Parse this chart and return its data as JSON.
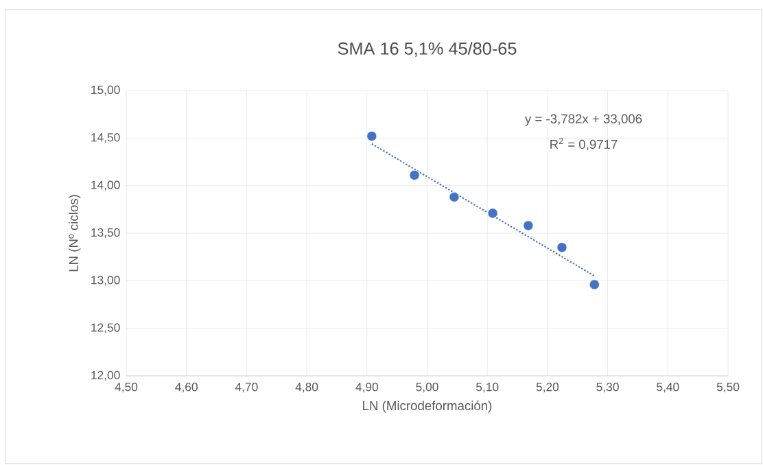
{
  "chart_data": {
    "type": "scatter",
    "title": "SMA 16 5,1% 45/80-65",
    "xlabel": "LN (Microdeformación)",
    "ylabel": "LN (Nº ciclos)",
    "annotations": [
      "y = -3,782x + 33,006",
      "R$^{2}$ = 0,9717"
    ],
    "series": [
      {
        "color": "#4472c4",
        "marker": "circle",
        "x": [
          4.908,
          4.979,
          5.045,
          5.109,
          5.168,
          5.224,
          5.278
        ],
        "values": [
          14.52,
          14.11,
          13.88,
          13.71,
          13.58,
          13.35,
          12.96
        ]
      },
      {
        "type": "line",
        "color": "#4472c4",
        "line_style": "dotted",
        "marker": "none",
        "x": [
          4.908,
          5.278
        ],
        "values": [
          14.44,
          13.05
        ]
      }
    ],
    "xlim": [
      4.5,
      5.5
    ],
    "xticks": [
      {
        "value": 4.5,
        "label": "4,50"
      },
      {
        "value": 4.6,
        "label": "4,60"
      },
      {
        "value": 4.7,
        "label": "4,70"
      },
      {
        "value": 4.8,
        "label": "4,80"
      },
      {
        "value": 4.9,
        "label": "4,90"
      },
      {
        "value": 5.0,
        "label": "5,00"
      },
      {
        "value": 5.1,
        "label": "5,10"
      },
      {
        "value": 5.2,
        "label": "5,20"
      },
      {
        "value": 5.3,
        "label": "5,30"
      },
      {
        "value": 5.4,
        "label": "5,40"
      },
      {
        "value": 5.5,
        "label": "5,50"
      }
    ],
    "ylim": [
      12,
      15
    ],
    "yticks": [
      {
        "value": 12,
        "label": "12,00"
      },
      {
        "value": 12.5,
        "label": "12,50"
      },
      {
        "value": 13,
        "label": "13,00"
      },
      {
        "value": 13.5,
        "label": "13,50"
      },
      {
        "value": 14,
        "label": "14,00"
      },
      {
        "value": 14.5,
        "label": "14,50"
      },
      {
        "value": 15,
        "label": "15,00"
      }
    ],
    "grid": true
  }
}
